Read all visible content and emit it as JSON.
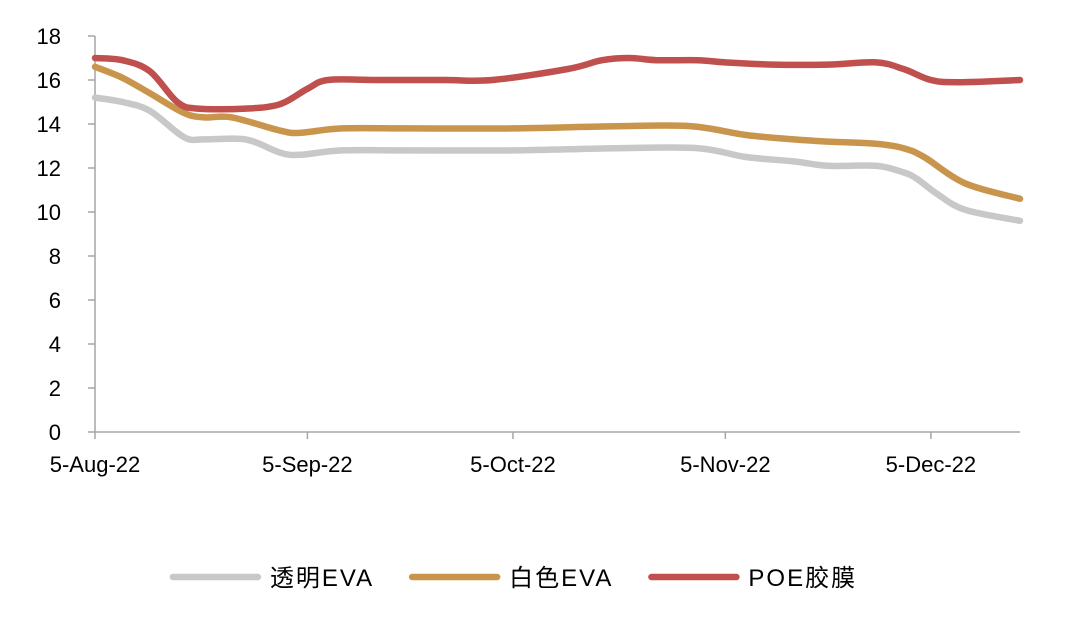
{
  "chart_data": {
    "type": "line",
    "title": "",
    "xlabel": "",
    "ylabel": "",
    "ylim": [
      0,
      18
    ],
    "yticks": [
      0,
      2,
      4,
      6,
      8,
      10,
      12,
      14,
      16,
      18
    ],
    "x_range": [
      "2022-08-05",
      "2022-12-18"
    ],
    "x_tick_labels": [
      {
        "date": "2022-08-05",
        "label": "5-Aug-22"
      },
      {
        "date": "2022-09-05",
        "label": "5-Sep-22"
      },
      {
        "date": "2022-10-05",
        "label": "5-Oct-22"
      },
      {
        "date": "2022-11-05",
        "label": "5-Nov-22"
      },
      {
        "date": "2022-12-05",
        "label": "5-Dec-22"
      }
    ],
    "grid": false,
    "legend_position": "bottom",
    "series": [
      {
        "name": "透明EVA",
        "color": "#c8c8c8",
        "points": [
          [
            "2022-08-05",
            15.2
          ],
          [
            "2022-08-09",
            15.0
          ],
          [
            "2022-08-13",
            14.6
          ],
          [
            "2022-08-18",
            13.4
          ],
          [
            "2022-08-21",
            13.3
          ],
          [
            "2022-08-27",
            13.3
          ],
          [
            "2022-09-01",
            12.7
          ],
          [
            "2022-09-04",
            12.6
          ],
          [
            "2022-09-10",
            12.8
          ],
          [
            "2022-09-20",
            12.8
          ],
          [
            "2022-10-05",
            12.8
          ],
          [
            "2022-10-20",
            12.9
          ],
          [
            "2022-11-01",
            12.9
          ],
          [
            "2022-11-08",
            12.5
          ],
          [
            "2022-11-15",
            12.3
          ],
          [
            "2022-11-20",
            12.1
          ],
          [
            "2022-11-27",
            12.1
          ],
          [
            "2022-12-01",
            11.8
          ],
          [
            "2022-12-03",
            11.5
          ],
          [
            "2022-12-06",
            10.8
          ],
          [
            "2022-12-10",
            10.1
          ],
          [
            "2022-12-18",
            9.6
          ]
        ]
      },
      {
        "name": "白色EVA",
        "color": "#c9954c",
        "points": [
          [
            "2022-08-05",
            16.6
          ],
          [
            "2022-08-09",
            16.1
          ],
          [
            "2022-08-13",
            15.4
          ],
          [
            "2022-08-18",
            14.5
          ],
          [
            "2022-08-21",
            14.3
          ],
          [
            "2022-08-25",
            14.3
          ],
          [
            "2022-09-01",
            13.7
          ],
          [
            "2022-09-04",
            13.6
          ],
          [
            "2022-09-10",
            13.8
          ],
          [
            "2022-09-20",
            13.8
          ],
          [
            "2022-10-05",
            13.8
          ],
          [
            "2022-10-20",
            13.9
          ],
          [
            "2022-10-31",
            13.9
          ],
          [
            "2022-11-08",
            13.5
          ],
          [
            "2022-11-15",
            13.3
          ],
          [
            "2022-11-20",
            13.2
          ],
          [
            "2022-11-27",
            13.1
          ],
          [
            "2022-12-01",
            12.9
          ],
          [
            "2022-12-04",
            12.5
          ],
          [
            "2022-12-10",
            11.3
          ],
          [
            "2022-12-18",
            10.6
          ]
        ]
      },
      {
        "name": "POE胶膜",
        "color": "#c0504d",
        "points": [
          [
            "2022-08-05",
            17.0
          ],
          [
            "2022-08-09",
            16.9
          ],
          [
            "2022-08-13",
            16.4
          ],
          [
            "2022-08-17",
            15.0
          ],
          [
            "2022-08-20",
            14.7
          ],
          [
            "2022-08-27",
            14.7
          ],
          [
            "2022-09-01",
            14.9
          ],
          [
            "2022-09-05",
            15.6
          ],
          [
            "2022-09-08",
            16.0
          ],
          [
            "2022-09-15",
            16.0
          ],
          [
            "2022-09-25",
            16.0
          ],
          [
            "2022-10-02",
            16.0
          ],
          [
            "2022-10-13",
            16.5
          ],
          [
            "2022-10-18",
            16.9
          ],
          [
            "2022-10-22",
            17.0
          ],
          [
            "2022-10-26",
            16.9
          ],
          [
            "2022-11-01",
            16.9
          ],
          [
            "2022-11-05",
            16.8
          ],
          [
            "2022-11-12",
            16.7
          ],
          [
            "2022-11-20",
            16.7
          ],
          [
            "2022-11-27",
            16.8
          ],
          [
            "2022-12-01",
            16.5
          ],
          [
            "2022-12-05",
            16.0
          ],
          [
            "2022-12-09",
            15.9
          ],
          [
            "2022-12-18",
            16.0
          ]
        ]
      }
    ]
  }
}
